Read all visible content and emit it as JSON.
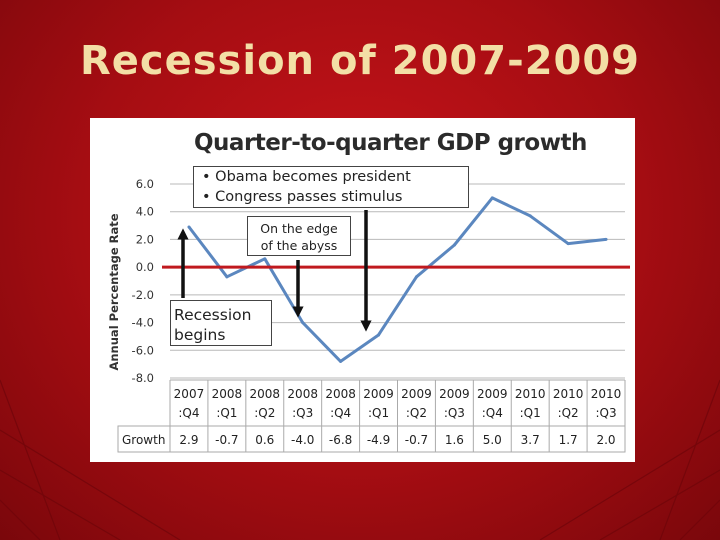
{
  "slide": {
    "title": "Recession of 2007-2009"
  },
  "annotations": {
    "obama_bullets": [
      "• Obama becomes president",
      "• Congress passes stimulus"
    ],
    "edge_lines": [
      "On the edge",
      "of the abyss"
    ],
    "recession_lines": [
      "Recession",
      "begins"
    ]
  },
  "table": {
    "row_label": "Growth"
  },
  "colors": {
    "background": "#b01016",
    "title": "#f3dfa6",
    "line": "#5b87bf",
    "zero_line": "#c0191e",
    "arrow": "#111111"
  },
  "chart_data": {
    "type": "line",
    "title": "Quarter-to-quarter GDP growth",
    "ylabel": "Annual Percentage Rate",
    "xlabel": "",
    "ylim": [
      -8,
      6
    ],
    "yticks": [
      "6.0",
      "4.0",
      "2.0",
      "0.0",
      "-2.0",
      "-4.0",
      "-6.0",
      "-8.0"
    ],
    "grid": true,
    "categories": [
      [
        "2007",
        ":Q4"
      ],
      [
        "2008",
        ":Q1"
      ],
      [
        "2008",
        ":Q2"
      ],
      [
        "2008",
        ":Q3"
      ],
      [
        "2008",
        ":Q4"
      ],
      [
        "2009",
        ":Q1"
      ],
      [
        "2009",
        ":Q2"
      ],
      [
        "2009",
        ":Q3"
      ],
      [
        "2009",
        ":Q4"
      ],
      [
        "2010",
        ":Q1"
      ],
      [
        "2010",
        ":Q2"
      ],
      [
        "2010",
        ":Q3"
      ]
    ],
    "series": [
      {
        "name": "Growth",
        "values": [
          2.9,
          -0.7,
          0.6,
          -4.0,
          -6.8,
          -4.9,
          -0.7,
          1.6,
          5.0,
          3.7,
          1.7,
          2.0
        ],
        "labels": [
          "2.9",
          "-0.7",
          "0.6",
          "-4.0",
          "-6.8",
          "-4.9",
          "-0.7",
          "1.6",
          "5.0",
          "3.7",
          "1.7",
          "2.0"
        ]
      }
    ]
  }
}
